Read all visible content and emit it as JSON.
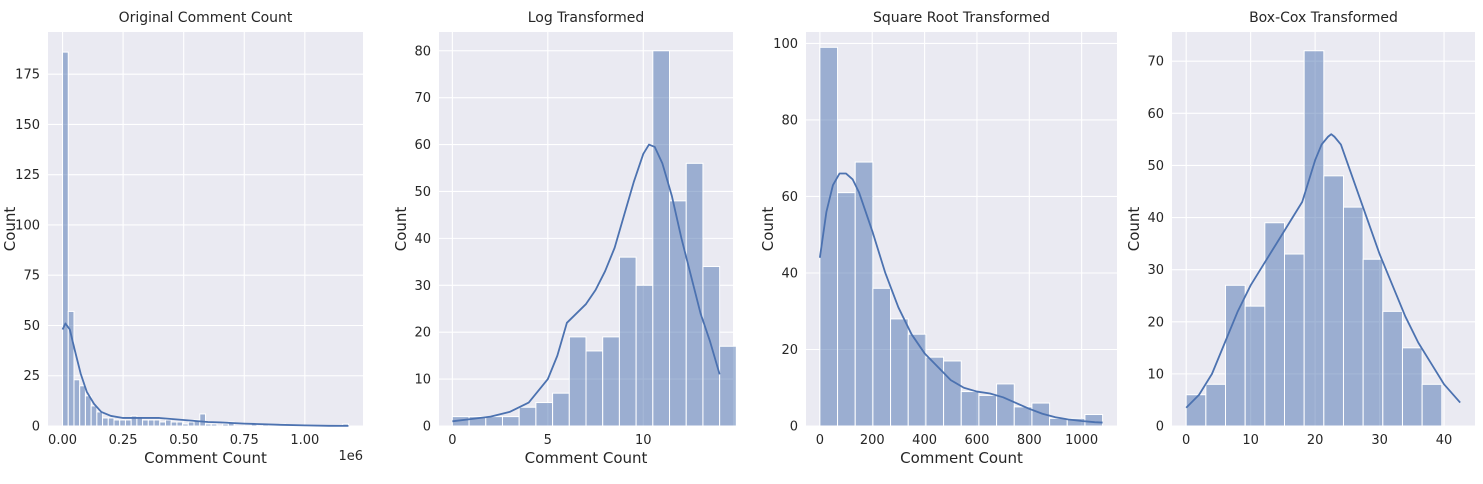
{
  "colors": {
    "axes_bg": "#EAEAF2",
    "grid": "#FFFFFF",
    "bar_fill": "#4C72B0",
    "bar_opacity": 0.5,
    "kde_line": "#4C72B0",
    "text": "#262626"
  },
  "chart_data": [
    {
      "type": "bar",
      "title": "Original Comment Count",
      "xlabel": "Comment Count",
      "ylabel": "Count",
      "x_offset_label": "1e6",
      "xlim": [
        -0.06,
        1.24
      ],
      "ylim": [
        0,
        196
      ],
      "xticks": [
        0.0,
        0.25,
        0.5,
        0.75,
        1.0
      ],
      "xtick_labels": [
        "0.00",
        "0.25",
        "0.50",
        "0.75",
        "1.00"
      ],
      "yticks": [
        0,
        25,
        50,
        75,
        100,
        125,
        150,
        175
      ],
      "grid": true,
      "bin_start": 0.0,
      "bin_width": 0.0236,
      "values": [
        186,
        57,
        23,
        20,
        15,
        10,
        7,
        4,
        4,
        3,
        3,
        3,
        5,
        4,
        3,
        3,
        3,
        2,
        3,
        2,
        2,
        1,
        2,
        3,
        6,
        1,
        1,
        0,
        1,
        2,
        0,
        0,
        0,
        1,
        0,
        1,
        0,
        0,
        1,
        0,
        0,
        0,
        0,
        0,
        0,
        0,
        0,
        0,
        0,
        1
      ],
      "kde": {
        "x": [
          0.0,
          0.012,
          0.03,
          0.05,
          0.075,
          0.1,
          0.13,
          0.16,
          0.2,
          0.25,
          0.3,
          0.35,
          0.4,
          0.45,
          0.5,
          0.55,
          0.6,
          0.65,
          0.7,
          0.75,
          0.8,
          0.9,
          1.0,
          1.1,
          1.18
        ],
        "y": [
          48,
          51,
          48,
          38,
          26,
          17,
          11,
          7,
          5,
          4,
          4,
          4,
          4,
          3.5,
          3,
          2.5,
          2,
          1.8,
          1.5,
          1.2,
          1.0,
          0.6,
          0.3,
          0.1,
          0.05
        ]
      }
    },
    {
      "type": "bar",
      "title": "Log Transformed",
      "xlabel": "Comment Count",
      "ylabel": "Count",
      "xlim": [
        -0.7,
        14.7
      ],
      "ylim": [
        0,
        84
      ],
      "xticks": [
        0,
        5,
        10
      ],
      "xtick_labels": [
        "0",
        "5",
        "10"
      ],
      "yticks": [
        0,
        10,
        20,
        30,
        40,
        50,
        60,
        70,
        80
      ],
      "grid": true,
      "bin_start": 0.0,
      "bin_width": 0.875,
      "values": [
        2,
        2,
        2,
        2,
        4,
        5,
        7,
        19,
        16,
        19,
        36,
        30,
        80,
        48,
        56,
        34,
        17
      ],
      "kde": {
        "x": [
          0.0,
          1,
          2,
          3,
          4,
          5,
          5.5,
          6,
          6.5,
          7,
          7.5,
          8,
          8.5,
          9,
          9.5,
          10,
          10.3,
          10.6,
          11,
          11.5,
          12,
          12.5,
          13,
          13.5,
          14.0
        ],
        "y": [
          1,
          1.5,
          2,
          3,
          5,
          10,
          15,
          22,
          24,
          26,
          29,
          33,
          38,
          45,
          52,
          58,
          60,
          59.5,
          56,
          49,
          40,
          32,
          24,
          18,
          11
        ]
      }
    },
    {
      "type": "bar",
      "title": "Square Root Transformed",
      "xlabel": "Comment Count",
      "ylabel": "Count",
      "xlim": [
        -53,
        1135
      ],
      "ylim": [
        0,
        103
      ],
      "xticks": [
        0,
        200,
        400,
        600,
        800,
        1000
      ],
      "xtick_labels": [
        "0",
        "200",
        "400",
        "600",
        "800",
        "1000"
      ],
      "yticks": [
        0,
        20,
        40,
        60,
        80,
        100
      ],
      "grid": true,
      "bin_start": 0,
      "bin_width": 67.5,
      "values": [
        99,
        61,
        69,
        36,
        28,
        24,
        18,
        17,
        9,
        8,
        11,
        5,
        6,
        2,
        2,
        3
      ],
      "kde": {
        "x": [
          0,
          25,
          50,
          75,
          100,
          125,
          150,
          200,
          250,
          300,
          350,
          400,
          450,
          500,
          550,
          600,
          650,
          700,
          750,
          800,
          850,
          900,
          950,
          1000,
          1050,
          1080
        ],
        "y": [
          44,
          56,
          63,
          66,
          66,
          64.5,
          61,
          51,
          40,
          31,
          24,
          19,
          15.5,
          12,
          10,
          9,
          8.5,
          7.5,
          6,
          4.5,
          3.2,
          2.3,
          1.7,
          1.3,
          1.0,
          0.9
        ]
      }
    },
    {
      "type": "bar",
      "title": "Box-Cox Transformed",
      "xlabel": "",
      "ylabel": "Count",
      "xlim": [
        -2.2,
        44.8
      ],
      "ylim": [
        0,
        75.6
      ],
      "xticks": [
        0,
        10,
        20,
        30,
        40
      ],
      "xtick_labels": [
        "0",
        "10",
        "20",
        "30",
        "40"
      ],
      "yticks": [
        0,
        10,
        20,
        30,
        40,
        50,
        60,
        70
      ],
      "grid": true,
      "bin_start": 0.0,
      "bin_width": 3.05,
      "values": [
        6,
        8,
        27,
        23,
        39,
        33,
        72,
        48,
        42,
        32,
        22,
        15,
        8
      ],
      "kde": {
        "x": [
          0,
          2,
          4,
          6,
          8,
          10,
          12,
          14,
          16,
          18,
          20,
          21,
          22,
          22.5,
          23,
          24,
          26,
          28,
          30,
          32,
          34,
          36,
          38,
          40,
          42.5
        ],
        "y": [
          3.5,
          6,
          10,
          16,
          22,
          27,
          31,
          35,
          39,
          43,
          51,
          54,
          55.5,
          56,
          55.5,
          54,
          47,
          40,
          33,
          27,
          21,
          16,
          12,
          8,
          4.5
        ]
      }
    }
  ]
}
